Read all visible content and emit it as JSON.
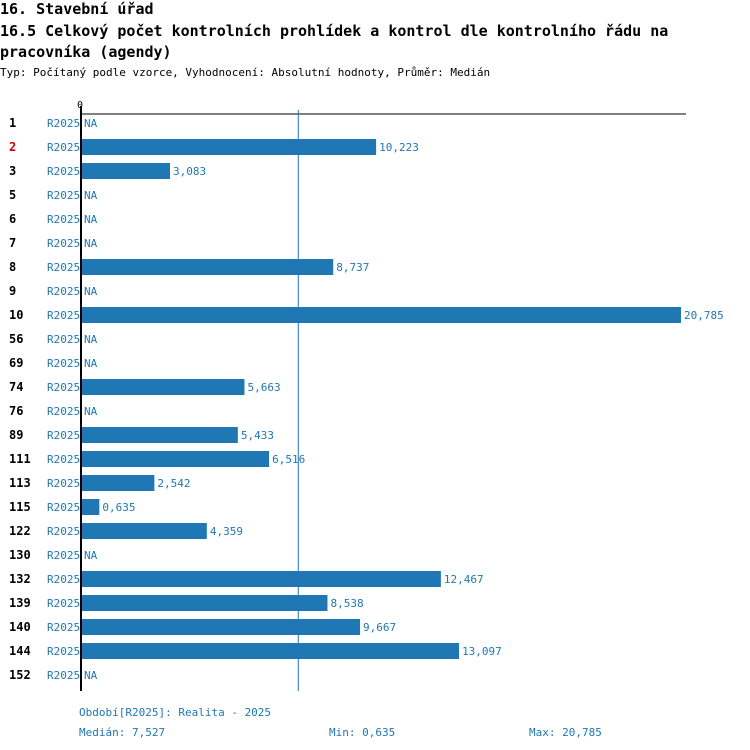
{
  "header": {
    "title": "16. Stavební úřad",
    "subtitle": "16.5 Celkový počet kontrolních prohlídek a kontrol dle kontrolního řádu na pracovníka (agendy)",
    "meta": "Typ: Počítaný podle vzorce, Vyhodnocení: Absolutní hodnoty, Průměr: Medián"
  },
  "chart_data": {
    "type": "bar",
    "orientation": "horizontal",
    "title": "16.5 Celkový počet kontrolních prohlídek a kontrol dle kontrolního řádu na pracovníka (agendy)",
    "axis_tick_label": "0",
    "period": "R2025",
    "categories": [
      "1",
      "2",
      "3",
      "5",
      "6",
      "7",
      "8",
      "9",
      "10",
      "56",
      "69",
      "74",
      "76",
      "89",
      "111",
      "113",
      "115",
      "122",
      "130",
      "132",
      "139",
      "140",
      "144",
      "152"
    ],
    "values": [
      null,
      10.223,
      3.083,
      null,
      null,
      null,
      8.737,
      null,
      20.785,
      null,
      null,
      5.663,
      null,
      5.433,
      6.516,
      2.542,
      0.635,
      4.359,
      null,
      12.467,
      8.538,
      9.667,
      13.097,
      null
    ],
    "value_labels": [
      "NA",
      "10,223",
      "3,083",
      "NA",
      "NA",
      "NA",
      "8,737",
      "NA",
      "20,785",
      "NA",
      "NA",
      "5,663",
      "NA",
      "5,433",
      "6,516",
      "2,542",
      "0,635",
      "4,359",
      "NA",
      "12,467",
      "8,538",
      "9,667",
      "13,097",
      "NA"
    ],
    "highlighted_category": "2",
    "median": 7.527,
    "xlim": [
      0,
      20.785
    ],
    "colors": {
      "bar": "#1f77b4",
      "highlight": "#cc0000",
      "text": "#000000"
    }
  },
  "footer": {
    "period_label": "Období[R2025]: Realita - 2025",
    "median_label": "Medián: 7,527",
    "min_label": "Min: 0,635",
    "max_label": "Max: 20,785"
  }
}
